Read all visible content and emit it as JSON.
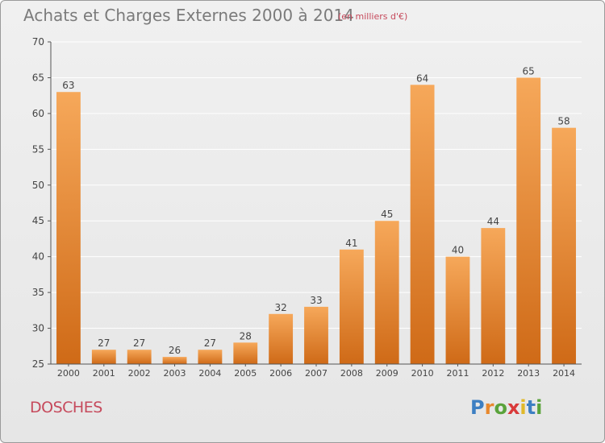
{
  "header": {
    "title": "Achats et Charges Externes 2000 à 2014",
    "unit": "(en milliers d'€)"
  },
  "footer": {
    "city": "DOSCHES",
    "logo_text": [
      "P",
      "r",
      "o",
      "x",
      "i",
      "t",
      "i"
    ]
  },
  "colors": {
    "bar_light": "#f6a85a",
    "bar_dark": "#cf6a17",
    "title": "#7b7b7b",
    "accent": "#c64a5c",
    "grid": "#ffffff",
    "axis_text": "#444444"
  },
  "chart_data": {
    "type": "bar",
    "title": "Achats et Charges Externes 2000 à 2014",
    "subtitle": "(en milliers d'€)",
    "categories": [
      "2000",
      "2001",
      "2002",
      "2003",
      "2004",
      "2005",
      "2006",
      "2007",
      "2008",
      "2009",
      "2010",
      "2011",
      "2012",
      "2013",
      "2014"
    ],
    "values": [
      63,
      27,
      27,
      26,
      27,
      28,
      32,
      33,
      41,
      45,
      64,
      40,
      44,
      65,
      58
    ],
    "ylim": [
      25,
      70
    ],
    "yticks": [
      25,
      30,
      35,
      40,
      45,
      50,
      55,
      60,
      65,
      70
    ],
    "xlabel": "",
    "ylabel": "",
    "grid": true,
    "data_labels": true
  }
}
